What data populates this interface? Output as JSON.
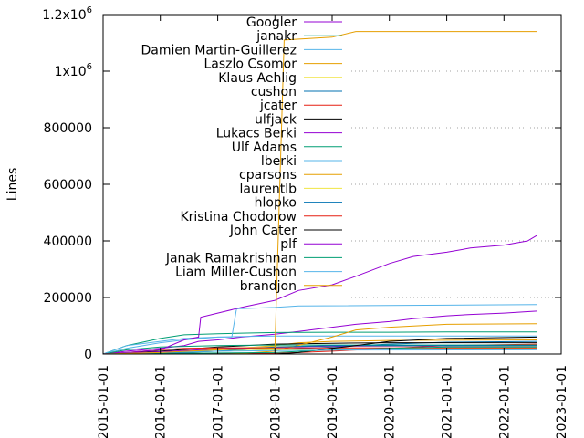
{
  "chart_data": {
    "type": "line",
    "xlabel": "",
    "ylabel": "Lines",
    "ylim": [
      0,
      1200000
    ],
    "xlim": [
      "2015-01-01",
      "2023-01-01"
    ],
    "x_ticks": [
      "2015-01-01",
      "2016-01-01",
      "2017-01-01",
      "2018-01-01",
      "2019-01-01",
      "2020-01-01",
      "2021-01-01",
      "2022-01-01",
      "2023-01-01"
    ],
    "y_ticks": [
      {
        "value": 0,
        "label": "0"
      },
      {
        "value": 200000,
        "label": "200000"
      },
      {
        "value": 400000,
        "label": "400000"
      },
      {
        "value": 600000,
        "label": "600000"
      },
      {
        "value": 800000,
        "label": "800000"
      },
      {
        "value": 1000000,
        "label": "1x10",
        "exp": "6"
      },
      {
        "value": 1200000,
        "label": "1.2x10",
        "exp": "6"
      }
    ],
    "grid": "y-dotted-right",
    "legend_position": "top-right",
    "series": [
      {
        "name": "Googler",
        "color": "#9400d3",
        "points": [
          [
            "2015-01-01",
            0
          ],
          [
            "2015-06-01",
            10000
          ],
          [
            "2016-01-01",
            20000
          ],
          [
            "2016-06-01",
            30000
          ],
          [
            "2016-09-01",
            45000
          ],
          [
            "2017-01-01",
            50000
          ],
          [
            "2017-06-01",
            60000
          ],
          [
            "2018-01-01",
            70000
          ],
          [
            "2018-06-01",
            80000
          ],
          [
            "2019-01-01",
            95000
          ],
          [
            "2019-06-01",
            105000
          ],
          [
            "2020-01-01",
            115000
          ],
          [
            "2020-06-01",
            125000
          ],
          [
            "2021-01-01",
            135000
          ],
          [
            "2021-06-01",
            140000
          ],
          [
            "2022-01-01",
            145000
          ],
          [
            "2022-06-01",
            150000
          ],
          [
            "2022-08-01",
            152000
          ]
        ]
      },
      {
        "name": "janakr",
        "color": "#009e73",
        "points": [
          [
            "2015-01-01",
            0
          ],
          [
            "2015-06-01",
            30000
          ],
          [
            "2016-01-01",
            55000
          ],
          [
            "2016-06-01",
            68000
          ],
          [
            "2017-01-01",
            72000
          ],
          [
            "2017-06-01",
            74000
          ],
          [
            "2018-01-01",
            76000
          ],
          [
            "2019-01-01",
            77000
          ],
          [
            "2020-01-01",
            77000
          ],
          [
            "2021-01-01",
            78000
          ],
          [
            "2022-08-01",
            78000
          ]
        ]
      },
      {
        "name": "Damien Martin-Guillerez",
        "color": "#56b4e9",
        "points": [
          [
            "2015-01-01",
            0
          ],
          [
            "2015-06-01",
            20000
          ],
          [
            "2016-01-01",
            40000
          ],
          [
            "2016-06-01",
            50000
          ],
          [
            "2017-01-01",
            60000
          ],
          [
            "2017-06-01",
            62000
          ],
          [
            "2018-01-01",
            64000
          ],
          [
            "2022-08-01",
            64000
          ]
        ]
      },
      {
        "name": "Laszlo Csomor",
        "color": "#e69f00",
        "points": [
          [
            "2015-01-01",
            0
          ],
          [
            "2016-01-01",
            5000
          ],
          [
            "2017-01-01",
            15000
          ],
          [
            "2018-01-01",
            30000
          ],
          [
            "2018-06-01",
            40000
          ],
          [
            "2019-01-01",
            45000
          ],
          [
            "2020-01-01",
            48000
          ],
          [
            "2022-08-01",
            50000
          ]
        ]
      },
      {
        "name": "Klaus Aehlig",
        "color": "#f0e442",
        "points": [
          [
            "2015-01-01",
            0
          ],
          [
            "2016-01-01",
            10000
          ],
          [
            "2017-01-01",
            20000
          ],
          [
            "2018-01-01",
            26000
          ],
          [
            "2019-01-01",
            28000
          ],
          [
            "2022-08-01",
            28000
          ]
        ]
      },
      {
        "name": "cushon",
        "color": "#0072b2",
        "points": [
          [
            "2015-01-01",
            0
          ],
          [
            "2016-01-01",
            5000
          ],
          [
            "2017-01-01",
            10000
          ],
          [
            "2018-01-01",
            15000
          ],
          [
            "2019-01-01",
            25000
          ],
          [
            "2020-01-01",
            35000
          ],
          [
            "2021-01-01",
            42000
          ],
          [
            "2022-08-01",
            45000
          ]
        ]
      },
      {
        "name": "jcater",
        "color": "#e51e10",
        "points": [
          [
            "2015-01-01",
            0
          ],
          [
            "2018-01-01",
            2000
          ],
          [
            "2019-01-01",
            10000
          ],
          [
            "2020-01-01",
            20000
          ],
          [
            "2021-01-01",
            30000
          ],
          [
            "2022-08-01",
            35000
          ]
        ]
      },
      {
        "name": "ulfjack",
        "color": "#000000",
        "points": [
          [
            "2015-01-01",
            0
          ],
          [
            "2016-01-01",
            10000
          ],
          [
            "2017-01-01",
            25000
          ],
          [
            "2018-01-01",
            35000
          ],
          [
            "2019-01-01",
            38000
          ],
          [
            "2020-01-01",
            40000
          ],
          [
            "2022-08-01",
            40000
          ]
        ]
      },
      {
        "name": "Lukacs Berki",
        "color": "#9400d3",
        "points": [
          [
            "2015-01-01",
            0
          ],
          [
            "2016-01-01",
            8000
          ],
          [
            "2017-01-01",
            18000
          ],
          [
            "2018-01-01",
            24000
          ],
          [
            "2019-01-01",
            28000
          ],
          [
            "2022-08-01",
            30000
          ]
        ]
      },
      {
        "name": "Ulf Adams",
        "color": "#009e73",
        "points": [
          [
            "2015-01-01",
            0
          ],
          [
            "2015-06-01",
            15000
          ],
          [
            "2016-01-01",
            25000
          ],
          [
            "2017-01-01",
            30000
          ],
          [
            "2018-01-01",
            32000
          ],
          [
            "2022-08-01",
            32000
          ]
        ]
      },
      {
        "name": "lberki",
        "color": "#56b4e9",
        "points": [
          [
            "2015-01-01",
            0
          ],
          [
            "2015-06-01",
            30000
          ],
          [
            "2016-01-01",
            45000
          ],
          [
            "2016-06-01",
            55000
          ],
          [
            "2017-01-01",
            60000
          ],
          [
            "2017-04-01",
            60000
          ],
          [
            "2017-05-01",
            160000
          ],
          [
            "2018-01-01",
            165000
          ],
          [
            "2018-06-01",
            170000
          ],
          [
            "2022-08-01",
            175000
          ]
        ]
      },
      {
        "name": "cparsons",
        "color": "#e69f00",
        "points": [
          [
            "2015-01-01",
            0
          ],
          [
            "2017-01-01",
            0
          ],
          [
            "2017-06-01",
            2000
          ],
          [
            "2018-01-01",
            10000
          ],
          [
            "2019-01-01",
            60000
          ],
          [
            "2019-06-01",
            85000
          ],
          [
            "2020-01-01",
            95000
          ],
          [
            "2021-01-01",
            105000
          ],
          [
            "2022-08-01",
            107000
          ]
        ]
      },
      {
        "name": "laurentlb",
        "color": "#f0e442",
        "points": [
          [
            "2015-01-01",
            0
          ],
          [
            "2016-01-01",
            3000
          ],
          [
            "2017-01-01",
            10000
          ],
          [
            "2018-01-01",
            15000
          ],
          [
            "2019-01-01",
            18000
          ],
          [
            "2022-08-01",
            20000
          ]
        ]
      },
      {
        "name": "hlopko",
        "color": "#0072b2",
        "points": [
          [
            "2015-01-01",
            0
          ],
          [
            "2016-01-01",
            2000
          ],
          [
            "2017-01-01",
            10000
          ],
          [
            "2018-01-01",
            25000
          ],
          [
            "2019-01-01",
            30000
          ],
          [
            "2022-08-01",
            30000
          ]
        ]
      },
      {
        "name": "Kristina Chodorow",
        "color": "#e51e10",
        "points": [
          [
            "2015-01-01",
            0
          ],
          [
            "2015-06-01",
            5000
          ],
          [
            "2016-01-01",
            15000
          ],
          [
            "2016-06-01",
            20000
          ],
          [
            "2017-01-01",
            22000
          ],
          [
            "2022-08-01",
            22000
          ]
        ]
      },
      {
        "name": "John Cater",
        "color": "#000000",
        "points": [
          [
            "2015-01-01",
            0
          ],
          [
            "2018-01-01",
            0
          ],
          [
            "2018-06-01",
            5000
          ],
          [
            "2019-01-01",
            20000
          ],
          [
            "2020-01-01",
            45000
          ],
          [
            "2021-01-01",
            55000
          ],
          [
            "2022-08-01",
            60000
          ]
        ]
      },
      {
        "name": "plf",
        "color": "#9400d3",
        "points": [
          [
            "2015-01-01",
            0
          ],
          [
            "2015-06-01",
            5000
          ],
          [
            "2016-01-01",
            15000
          ],
          [
            "2016-06-01",
            50000
          ],
          [
            "2016-09-01",
            60000
          ],
          [
            "2016-09-15",
            130000
          ],
          [
            "2017-01-01",
            145000
          ],
          [
            "2017-06-01",
            165000
          ],
          [
            "2018-01-01",
            190000
          ],
          [
            "2018-06-01",
            225000
          ],
          [
            "2019-01-01",
            245000
          ],
          [
            "2019-06-01",
            275000
          ],
          [
            "2020-01-01",
            320000
          ],
          [
            "2020-06-01",
            345000
          ],
          [
            "2021-01-01",
            360000
          ],
          [
            "2021-06-01",
            375000
          ],
          [
            "2022-01-01",
            385000
          ],
          [
            "2022-06-01",
            400000
          ],
          [
            "2022-08-01",
            420000
          ]
        ]
      },
      {
        "name": "Janak Ramakrishnan",
        "color": "#009e73",
        "points": [
          [
            "2015-01-01",
            0
          ],
          [
            "2016-01-01",
            2000
          ],
          [
            "2018-01-01",
            5000
          ],
          [
            "2019-01-01",
            15000
          ],
          [
            "2020-01-01",
            20000
          ],
          [
            "2021-01-01",
            25000
          ],
          [
            "2022-08-01",
            25000
          ]
        ]
      },
      {
        "name": "Liam Miller-Cushon",
        "color": "#56b4e9",
        "points": [
          [
            "2015-01-01",
            0
          ],
          [
            "2016-01-01",
            5000
          ],
          [
            "2017-01-01",
            10000
          ],
          [
            "2018-01-01",
            12000
          ],
          [
            "2019-01-01",
            14000
          ],
          [
            "2022-08-01",
            15000
          ]
        ]
      },
      {
        "name": "brandjon",
        "color": "#e69f00",
        "points": [
          [
            "2015-01-01",
            0
          ],
          [
            "2016-01-01",
            5000
          ],
          [
            "2017-01-01",
            15000
          ],
          [
            "2018-01-01",
            20000
          ],
          [
            "2018-03-01",
            1110000
          ],
          [
            "2019-01-01",
            1120000
          ],
          [
            "2019-06-01",
            1140000
          ],
          [
            "2022-08-01",
            1140000
          ]
        ]
      }
    ]
  }
}
